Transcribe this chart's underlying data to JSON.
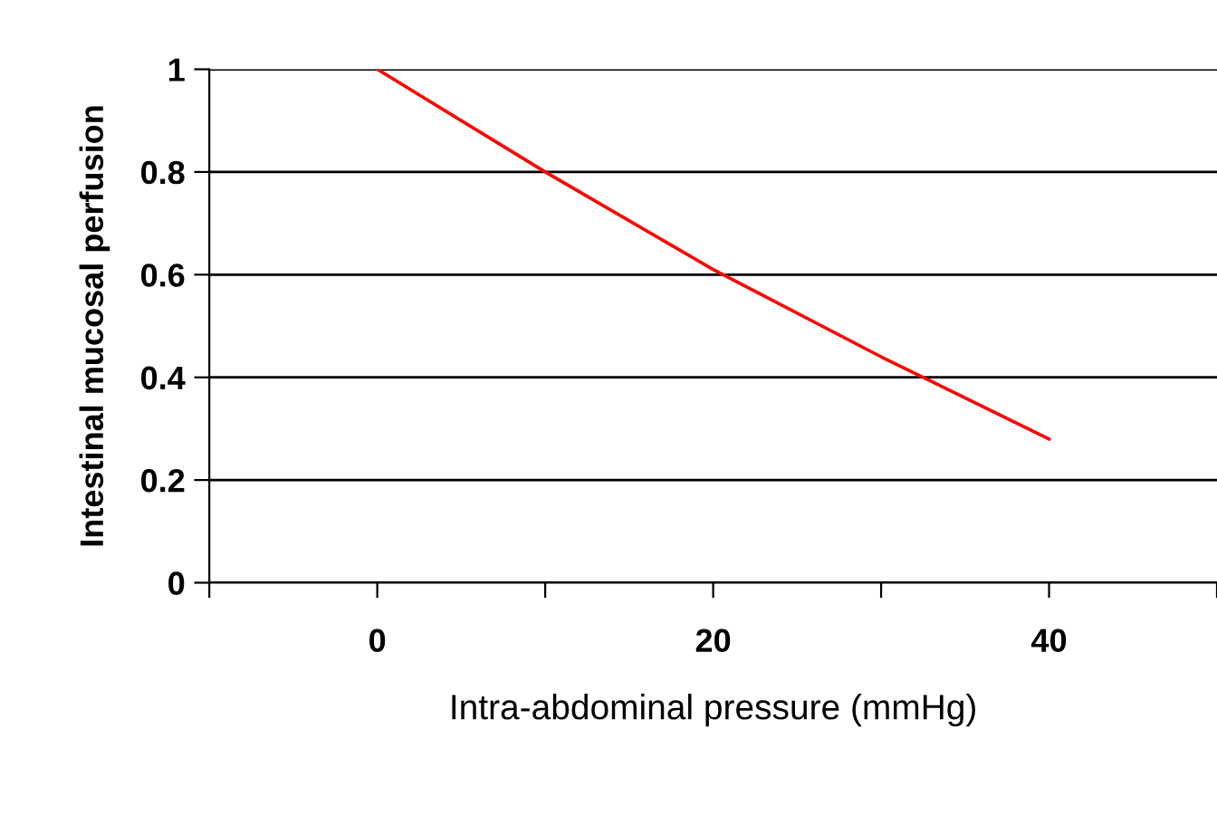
{
  "chart_data": {
    "type": "line",
    "xlabel": "Intra-abdominal pressure (mmHg)",
    "ylabel": "Intestinal mucosal perfusion",
    "x": [
      0,
      10,
      20,
      30,
      40
    ],
    "series": [
      {
        "color": "#ff0000",
        "values": [
          1.0,
          0.8,
          0.61,
          0.44,
          0.28
        ]
      }
    ],
    "xlim": [
      -10,
      50
    ],
    "xticks": [
      {
        "value": -10,
        "label": null
      },
      0,
      {
        "value": 10,
        "label": null
      },
      20,
      {
        "value": 30,
        "label": null
      },
      40,
      {
        "value": 50,
        "label": null
      }
    ],
    "ylim": [
      0,
      1
    ],
    "yticks": [
      0,
      0.2,
      0.4,
      0.6,
      0.8,
      1
    ],
    "grid": "y",
    "marker": "none",
    "line_style": "solid"
  }
}
